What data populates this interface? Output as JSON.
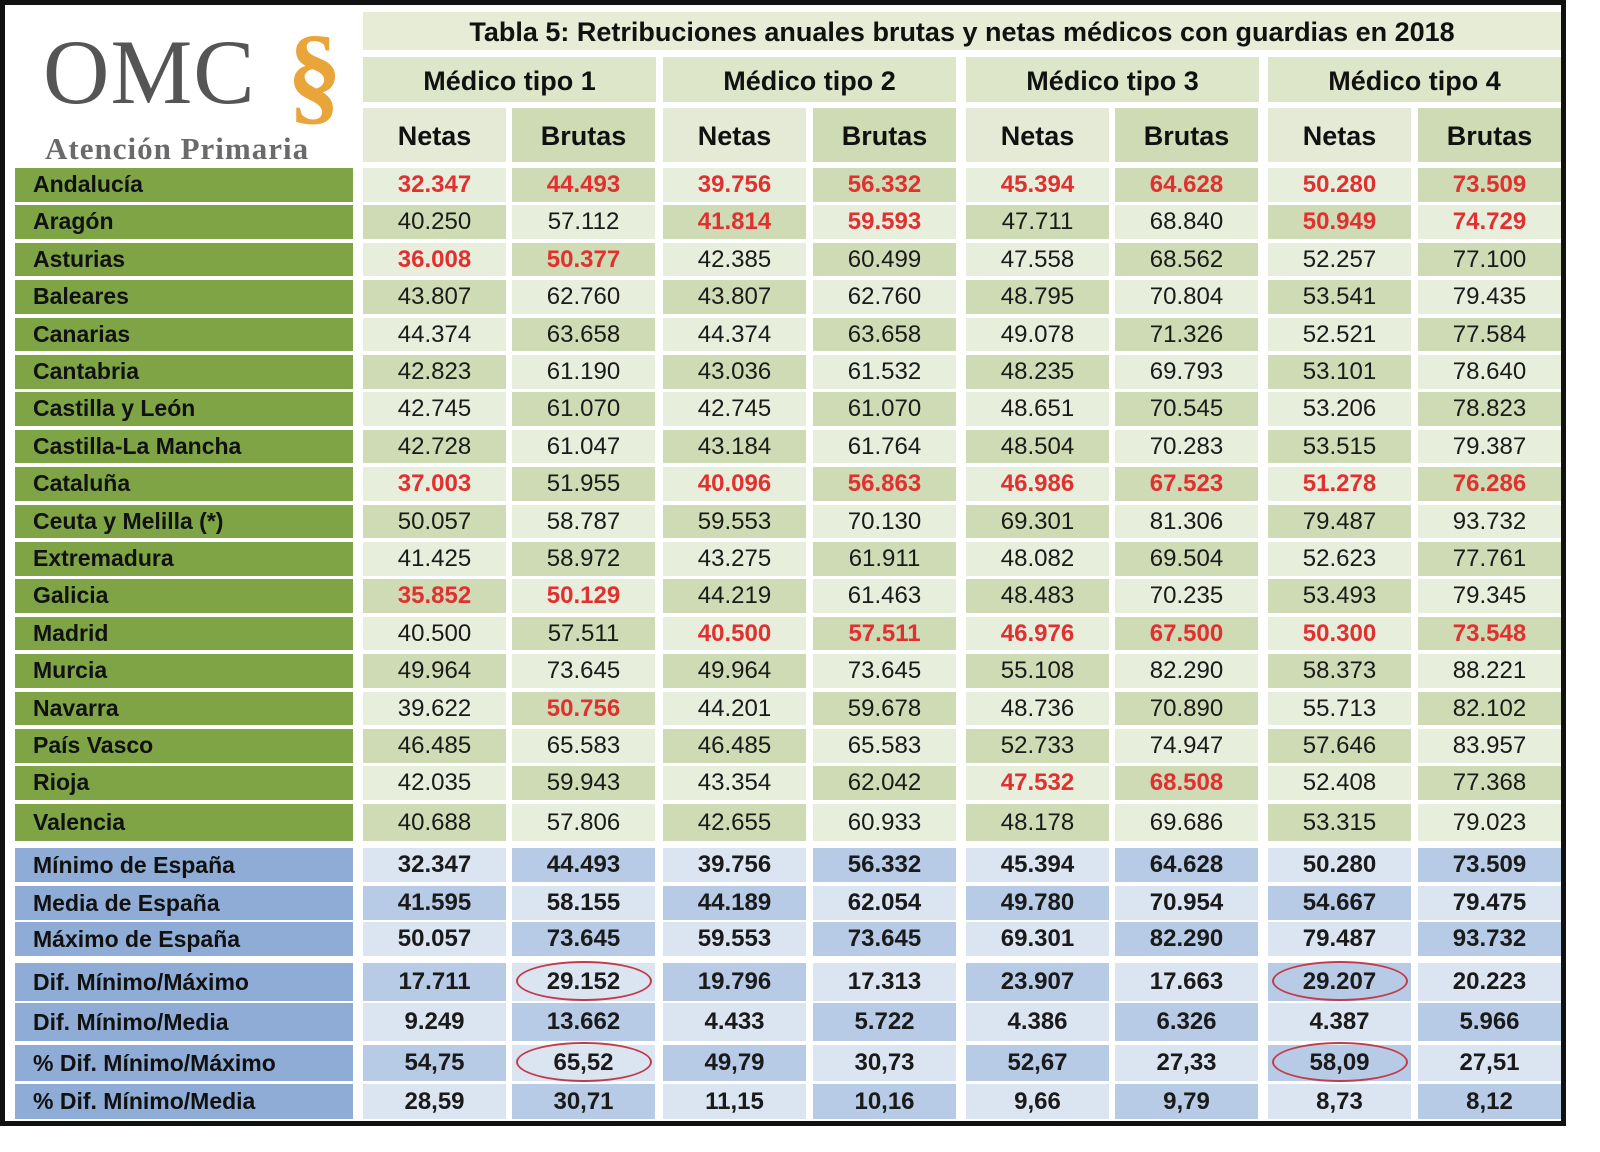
{
  "logo": {
    "brand": "OMC",
    "symbol": "§",
    "subtitle": "Atención Primaria"
  },
  "title": "Tabla 5: Retribuciones anuales brutas y netas médicos con guardias en 2018",
  "groups": [
    "Médico tipo  1",
    "Médico tipo  2",
    "Médico tipo  3",
    "Médico tipo  4"
  ],
  "subheaders": [
    "Netas",
    "Brutas"
  ],
  "colors": {
    "highlight": "#e03030",
    "region_label": "#7ea445",
    "summary_label": "#8eacd6",
    "circle": "#c23b4b"
  },
  "regions": [
    {
      "name": "Andalucía",
      "values": [
        "32.347",
        "44.493",
        "39.756",
        "56.332",
        "45.394",
        "64.628",
        "50.280",
        "73.509"
      ],
      "highlighted": [
        0,
        1,
        2,
        3,
        4,
        5,
        6,
        7
      ]
    },
    {
      "name": "Aragón",
      "values": [
        "40.250",
        "57.112",
        "41.814",
        "59.593",
        "47.711",
        "68.840",
        "50.949",
        "74.729"
      ],
      "highlighted": [
        2,
        3,
        6,
        7
      ]
    },
    {
      "name": "Asturias",
      "values": [
        "36.008",
        "50.377",
        "42.385",
        "60.499",
        "47.558",
        "68.562",
        "52.257",
        "77.100"
      ],
      "highlighted": [
        0,
        1
      ]
    },
    {
      "name": "Baleares",
      "values": [
        "43.807",
        "62.760",
        "43.807",
        "62.760",
        "48.795",
        "70.804",
        "53.541",
        "79.435"
      ],
      "highlighted": []
    },
    {
      "name": "Canarias",
      "values": [
        "44.374",
        "63.658",
        "44.374",
        "63.658",
        "49.078",
        "71.326",
        "52.521",
        "77.584"
      ],
      "highlighted": []
    },
    {
      "name": "Cantabria",
      "values": [
        "42.823",
        "61.190",
        "43.036",
        "61.532",
        "48.235",
        "69.793",
        "53.101",
        "78.640"
      ],
      "highlighted": []
    },
    {
      "name": "Castilla y León",
      "values": [
        "42.745",
        "61.070",
        "42.745",
        "61.070",
        "48.651",
        "70.545",
        "53.206",
        "78.823"
      ],
      "highlighted": []
    },
    {
      "name": "Castilla-La Mancha",
      "values": [
        "42.728",
        "61.047",
        "43.184",
        "61.764",
        "48.504",
        "70.283",
        "53.515",
        "79.387"
      ],
      "highlighted": []
    },
    {
      "name": "Cataluña",
      "values": [
        "37.003",
        "51.955",
        "40.096",
        "56.863",
        "46.986",
        "67.523",
        "51.278",
        "76.286"
      ],
      "highlighted": [
        0,
        2,
        3,
        4,
        5,
        6,
        7
      ]
    },
    {
      "name": "Ceuta y Melilla (*)",
      "values": [
        "50.057",
        "58.787",
        "59.553",
        "70.130",
        "69.301",
        "81.306",
        "79.487",
        "93.732"
      ],
      "highlighted": []
    },
    {
      "name": "Extremadura",
      "values": [
        "41.425",
        "58.972",
        "43.275",
        "61.911",
        "48.082",
        "69.504",
        "52.623",
        "77.761"
      ],
      "highlighted": []
    },
    {
      "name": "Galicia",
      "values": [
        "35.852",
        "50.129",
        "44.219",
        "61.463",
        "48.483",
        "70.235",
        "53.493",
        "79.345"
      ],
      "highlighted": [
        0,
        1
      ]
    },
    {
      "name": "Madrid",
      "values": [
        "40.500",
        "57.511",
        "40.500",
        "57.511",
        "46.976",
        "67.500",
        "50.300",
        "73.548"
      ],
      "highlighted": [
        2,
        3,
        4,
        5,
        6,
        7
      ]
    },
    {
      "name": "Murcia",
      "values": [
        "49.964",
        "73.645",
        "49.964",
        "73.645",
        "55.108",
        "82.290",
        "58.373",
        "88.221"
      ],
      "highlighted": []
    },
    {
      "name": "Navarra",
      "values": [
        "39.622",
        "50.756",
        "44.201",
        "59.678",
        "48.736",
        "70.890",
        "55.713",
        "82.102"
      ],
      "highlighted": [
        1
      ]
    },
    {
      "name": "País Vasco",
      "values": [
        "46.485",
        "65.583",
        "46.485",
        "65.583",
        "52.733",
        "74.947",
        "57.646",
        "83.957"
      ],
      "highlighted": []
    },
    {
      "name": "Rioja",
      "values": [
        "42.035",
        "59.943",
        "43.354",
        "62.042",
        "47.532",
        "68.508",
        "52.408",
        "77.368"
      ],
      "highlighted": [
        4,
        5
      ]
    },
    {
      "name": "Valencia",
      "values": [
        "40.688",
        "57.806",
        "42.655",
        "60.933",
        "48.178",
        "69.686",
        "53.315",
        "79.023"
      ],
      "highlighted": []
    }
  ],
  "summary": [
    {
      "name": "Mínimo de España",
      "values": [
        "32.347",
        "44.493",
        "39.756",
        "56.332",
        "45.394",
        "64.628",
        "50.280",
        "73.509"
      ],
      "circled": []
    },
    {
      "name": "Media de España",
      "values": [
        "41.595",
        "58.155",
        "44.189",
        "62.054",
        "49.780",
        "70.954",
        "54.667",
        "79.475"
      ],
      "circled": []
    },
    {
      "name": "Máximo de España",
      "values": [
        "50.057",
        "73.645",
        "59.553",
        "73.645",
        "69.301",
        "82.290",
        "79.487",
        "93.732"
      ],
      "circled": []
    },
    {
      "name": "Dif. Mínimo/Máximo",
      "values": [
        "17.711",
        "29.152",
        "19.796",
        "17.313",
        "23.907",
        "17.663",
        "29.207",
        "20.223"
      ],
      "circled": [
        1,
        6
      ]
    },
    {
      "name": "Dif. Mínimo/Media",
      "values": [
        "9.249",
        "13.662",
        "4.433",
        "5.722",
        "4.386",
        "6.326",
        "4.387",
        "5.966"
      ],
      "circled": []
    },
    {
      "name": "% Dif. Mínimo/Máximo",
      "values": [
        "54,75",
        "65,52",
        "49,79",
        "30,73",
        "52,67",
        "27,33",
        "58,09",
        "27,51"
      ],
      "circled": [
        1,
        6
      ]
    },
    {
      "name": "% Dif. Mínimo/Media",
      "values": [
        "28,59",
        "30,71",
        "11,15",
        "10,16",
        "9,66",
        "9,79",
        "8,73",
        "8,12"
      ],
      "circled": []
    }
  ]
}
